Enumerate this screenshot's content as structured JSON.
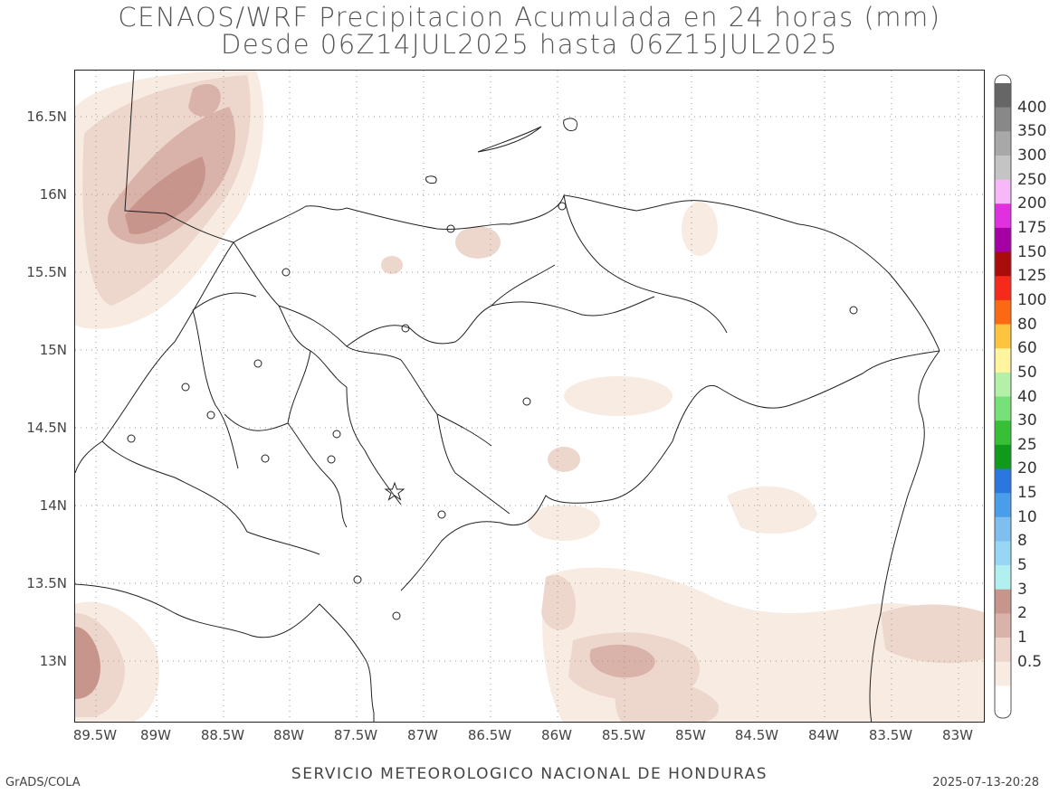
{
  "title": {
    "line1": "CENAOS/WRF Precipitacion Acumulada en 24 horas (mm)",
    "line2": "Desde 06Z14JUL2025 hasta 06Z15JUL2025"
  },
  "axes": {
    "lat_labels": [
      "16.5N",
      "16N",
      "15.5N",
      "15N",
      "14.5N",
      "14N",
      "13.5N",
      "13N"
    ],
    "lon_labels": [
      "89.5W",
      "89W",
      "88.5W",
      "88W",
      "87.5W",
      "87W",
      "86.5W",
      "86W",
      "85.5W",
      "85W",
      "84.5W",
      "84W",
      "83.5W",
      "83W"
    ]
  },
  "colorbar": {
    "levels": [
      "0.5",
      "1",
      "2",
      "3",
      "5",
      "8",
      "10",
      "15",
      "20",
      "25",
      "30",
      "40",
      "50",
      "60",
      "80",
      "100",
      "125",
      "150",
      "175",
      "200",
      "250",
      "300",
      "350",
      "400"
    ],
    "colors": [
      "#ffffff",
      "#f7ebe2",
      "#edd6cb",
      "#d9b3aa",
      "#c7958c",
      "#b2f0f0",
      "#98d6f5",
      "#7fbfef",
      "#4a9de8",
      "#2a78df",
      "#0f9a1c",
      "#38bf38",
      "#78e078",
      "#b4f0a8",
      "#fff5a0",
      "#fdc440",
      "#fb6a12",
      "#f52a1a",
      "#aa0c0c",
      "#a400a4",
      "#e030e0",
      "#f6b8f6",
      "#c4c4c4",
      "#a8a8a8",
      "#888888",
      "#666666"
    ]
  },
  "footer": {
    "left": "GrADS/COLA",
    "center": "SERVICIO METEOROLOGICO NACIONAL DE HONDURAS",
    "right": "2025-07-13-20:28"
  }
}
